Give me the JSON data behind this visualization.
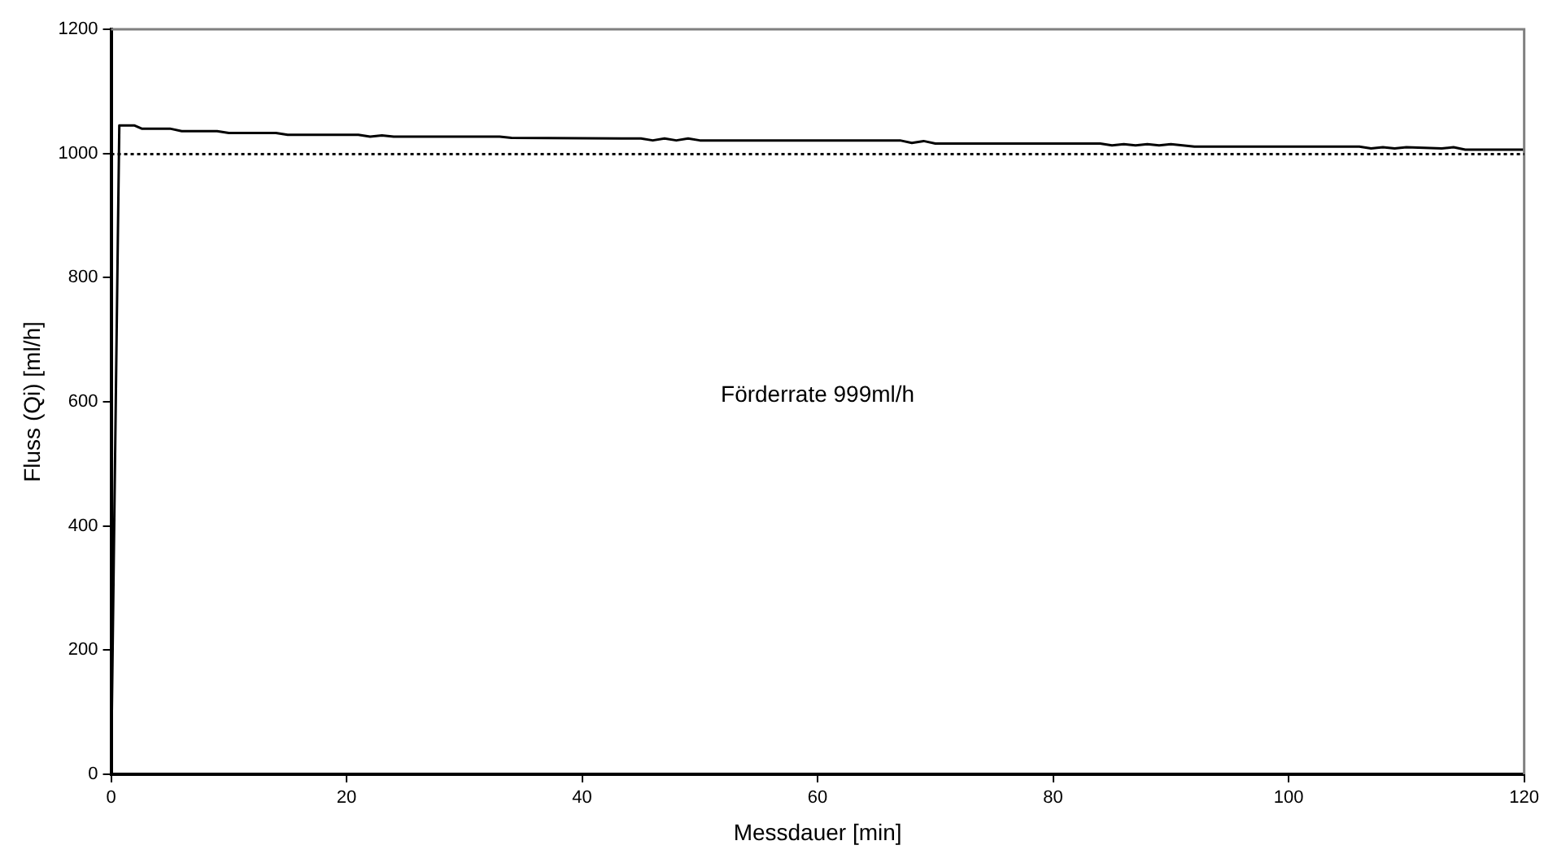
{
  "chart_data": {
    "type": "line",
    "xlabel": "Messdauer [min]",
    "ylabel": "Fluss (Qi) [ml/h]",
    "annotations": [
      "Förderrate 999ml/h"
    ],
    "xlim": [
      0,
      120
    ],
    "xticks": [
      0,
      20,
      40,
      60,
      80,
      100,
      120
    ],
    "ylim": [
      0,
      1200
    ],
    "yticks": [
      0,
      200,
      400,
      600,
      800,
      1000,
      1200
    ],
    "grid": false,
    "legend": false,
    "marker": "none",
    "line_style": "solid",
    "ref_lines": [
      {
        "axis": "y",
        "value": 999,
        "color": "#000000",
        "line_style": "dotted"
      }
    ],
    "series": [
      {
        "color": "#000000",
        "x": [
          0,
          0.2,
          0.4,
          0.6,
          0.7,
          2,
          2.6,
          5,
          6,
          9,
          10,
          14,
          15,
          21,
          22,
          23,
          24,
          33,
          34,
          45,
          46,
          47,
          48,
          49,
          50,
          67,
          68,
          69,
          70,
          84,
          85,
          86,
          87,
          88,
          89,
          90,
          91,
          92,
          106,
          107,
          108,
          109,
          110,
          113,
          114,
          115,
          120
        ],
        "values": [
          0,
          300,
          600,
          900,
          1045,
          1045,
          1040,
          1040,
          1036,
          1036,
          1033,
          1033,
          1030,
          1030,
          1027,
          1029,
          1027,
          1027,
          1025,
          1024,
          1021,
          1024,
          1021,
          1024,
          1021,
          1021,
          1017,
          1020,
          1016,
          1016,
          1013,
          1015,
          1013,
          1015,
          1013,
          1015,
          1013,
          1011,
          1011,
          1008,
          1010,
          1008,
          1010,
          1008,
          1010,
          1006,
          1006
        ]
      }
    ]
  }
}
